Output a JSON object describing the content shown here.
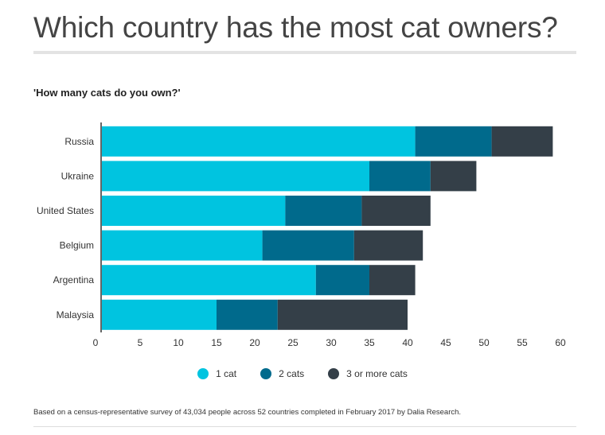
{
  "title": "Which country has the most cat owners?",
  "chart_data": {
    "type": "bar",
    "orientation": "horizontal",
    "stacked": true,
    "title": "Which country has the most cat owners?",
    "subtitle": "'How many cats do you own?'",
    "categories": [
      "Russia",
      "Ukraine",
      "United States",
      "Belgium",
      "Argentina",
      "Malaysia"
    ],
    "series": [
      {
        "name": "1 cat",
        "color": "#00c4e0",
        "values": [
          41,
          35,
          24,
          21,
          28,
          15
        ]
      },
      {
        "name": "2 cats",
        "color": "#006a8c",
        "values": [
          10,
          8,
          10,
          12,
          7,
          8
        ]
      },
      {
        "name": "3 or more cats",
        "color": "#343f48",
        "values": [
          8,
          6,
          9,
          9,
          6,
          17
        ]
      }
    ],
    "xlim": [
      0,
      60
    ],
    "xticks": [
      0,
      5,
      10,
      15,
      20,
      25,
      30,
      35,
      40,
      45,
      50,
      55,
      60
    ],
    "xlabel": "",
    "ylabel": "",
    "grid": false,
    "legend_position": "bottom-center"
  },
  "footnote": "Based on a census-representative survey of 43,034 people across 52 countries completed in February 2017 by Dalia Research."
}
